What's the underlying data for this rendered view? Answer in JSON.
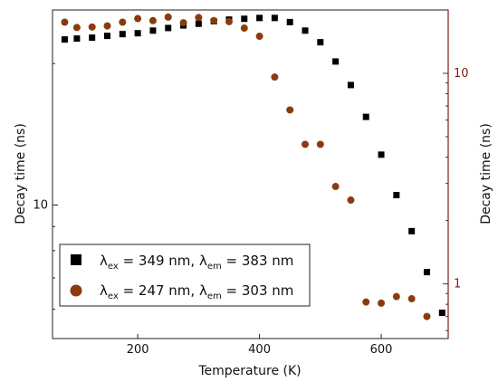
{
  "chart_data": {
    "type": "scatter",
    "xlabel": "Temperature (K)",
    "ylabel_left": "Decay time (ns)",
    "ylabel_right": "Decay time (ns)",
    "xlim": [
      60,
      710
    ],
    "x_ticks": [
      200,
      400,
      600
    ],
    "left_axis": {
      "scale": "log",
      "ylim": [
        5.2,
        26
      ],
      "tick_labels": [
        "10"
      ],
      "tick_values": [
        10
      ]
    },
    "right_axis": {
      "scale": "log",
      "ylim": [
        0.55,
        20
      ],
      "tick_labels": [
        "1",
        "10"
      ],
      "tick_values": [
        1,
        10
      ],
      "color": "#7a1f14"
    },
    "legend_position": "bottom-left",
    "series": [
      {
        "name": "λex = 349 nm, λem = 383 nm",
        "label": {
          "lambda": "λ",
          "sub1": "ex",
          "mid": " = 349 nm, ",
          "sub2": "em",
          "end": " = 383 nm"
        },
        "axis": "left",
        "marker": "square",
        "color": "#000000",
        "points": [
          [
            80,
            22.5
          ],
          [
            100,
            22.6
          ],
          [
            125,
            22.7
          ],
          [
            150,
            22.9
          ],
          [
            175,
            23.1
          ],
          [
            200,
            23.2
          ],
          [
            225,
            23.5
          ],
          [
            250,
            23.8
          ],
          [
            275,
            24.1
          ],
          [
            300,
            24.3
          ],
          [
            325,
            24.6
          ],
          [
            350,
            24.8
          ],
          [
            375,
            24.9
          ],
          [
            400,
            25.0
          ],
          [
            425,
            25.0
          ],
          [
            450,
            24.5
          ],
          [
            475,
            23.5
          ],
          [
            500,
            22.2
          ],
          [
            525,
            20.2
          ],
          [
            550,
            18.0
          ],
          [
            575,
            15.4
          ],
          [
            600,
            12.8
          ],
          [
            625,
            10.5
          ],
          [
            650,
            8.8
          ],
          [
            675,
            7.2
          ],
          [
            700,
            5.9
          ]
        ]
      },
      {
        "name": "λex = 247 nm, λem = 303 nm",
        "label": {
          "lambda": "λ",
          "sub1": "ex",
          "mid": " = 247 nm, ",
          "sub2": "em",
          "end": " = 303 nm"
        },
        "axis": "right",
        "marker": "circle",
        "color": "#8b3a10",
        "points": [
          [
            80,
            17.5
          ],
          [
            100,
            16.5
          ],
          [
            125,
            16.6
          ],
          [
            150,
            16.8
          ],
          [
            175,
            17.5
          ],
          [
            200,
            18.2
          ],
          [
            225,
            17.8
          ],
          [
            250,
            18.5
          ],
          [
            275,
            17.4
          ],
          [
            300,
            18.4
          ],
          [
            325,
            17.8
          ],
          [
            350,
            17.6
          ],
          [
            375,
            16.4
          ],
          [
            400,
            15.0
          ],
          [
            425,
            9.6
          ],
          [
            450,
            6.7
          ],
          [
            475,
            4.6
          ],
          [
            500,
            4.6
          ],
          [
            525,
            2.9
          ],
          [
            550,
            2.5
          ],
          [
            575,
            0.82
          ],
          [
            600,
            0.81
          ],
          [
            625,
            0.87
          ],
          [
            650,
            0.85
          ],
          [
            675,
            0.7
          ]
        ]
      }
    ]
  }
}
